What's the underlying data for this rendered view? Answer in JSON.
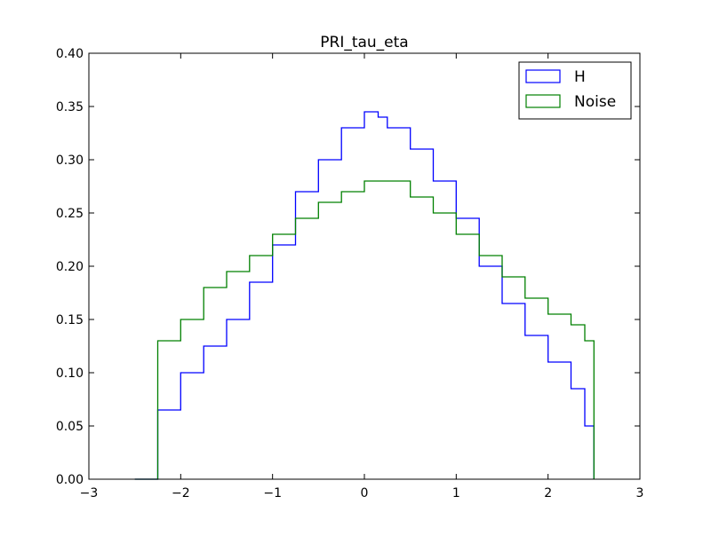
{
  "chart_data": {
    "type": "line",
    "title": "PRI_tau_eta",
    "xlabel": "",
    "ylabel": "",
    "xlim": [
      -3,
      3
    ],
    "ylim": [
      0,
      0.4
    ],
    "grid": false,
    "legend_position": "top-right",
    "x_ticks": [
      -3,
      -2,
      -1,
      0,
      1,
      2,
      3
    ],
    "x_tick_labels": [
      "−3",
      "−2",
      "−1",
      "0",
      "1",
      "2",
      "3"
    ],
    "y_ticks": [
      0,
      0.05,
      0.1,
      0.15,
      0.2,
      0.25,
      0.3,
      0.35,
      0.4
    ],
    "y_tick_labels": [
      "0.00",
      "0.05",
      "0.10",
      "0.15",
      "0.20",
      "0.25",
      "0.30",
      "0.35",
      "0.40"
    ],
    "x": [
      -2.5,
      -2.25,
      -2.0,
      -1.75,
      -1.5,
      -1.25,
      -1.0,
      -0.75,
      -0.5,
      -0.25,
      0.0,
      0.15,
      0.25,
      0.5,
      0.75,
      1.0,
      1.25,
      1.5,
      1.75,
      2.0,
      2.25,
      2.4,
      2.5
    ],
    "series": [
      {
        "name": "H",
        "color": "#0000ff",
        "values": [
          0.0,
          0.065,
          0.1,
          0.125,
          0.15,
          0.185,
          0.22,
          0.27,
          0.3,
          0.33,
          0.345,
          0.34,
          0.33,
          0.31,
          0.28,
          0.245,
          0.2,
          0.165,
          0.135,
          0.11,
          0.085,
          0.05,
          0.0
        ]
      },
      {
        "name": "Noise",
        "color": "#008000",
        "values": [
          0.0,
          0.13,
          0.15,
          0.18,
          0.195,
          0.21,
          0.23,
          0.245,
          0.26,
          0.27,
          0.28,
          0.28,
          0.28,
          0.265,
          0.25,
          0.23,
          0.21,
          0.19,
          0.17,
          0.155,
          0.145,
          0.13,
          0.0
        ]
      }
    ]
  }
}
